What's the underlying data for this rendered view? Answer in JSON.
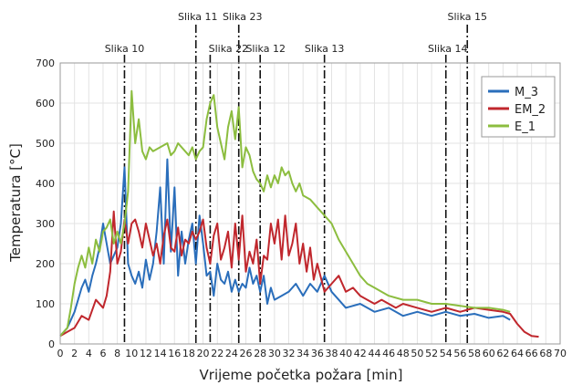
{
  "chart_data": {
    "type": "line",
    "xlabel": "Vrijeme početka požara [min]",
    "ylabel": "Temperatura [°C]",
    "xlim": [
      0,
      70
    ],
    "ylim": [
      0,
      700
    ],
    "xticks": [
      0,
      2,
      4,
      6,
      8,
      10,
      12,
      14,
      16,
      18,
      20,
      22,
      24,
      26,
      28,
      30,
      32,
      34,
      36,
      38,
      40,
      42,
      44,
      46,
      48,
      50,
      52,
      54,
      56,
      58,
      60,
      62,
      64,
      66,
      68,
      70
    ],
    "yticks": [
      0,
      100,
      200,
      300,
      400,
      500,
      600,
      700
    ],
    "grid": true,
    "legend_position": "top-right",
    "series": [
      {
        "name": "M_3",
        "color": "#2a6ebb",
        "points": [
          [
            0,
            20
          ],
          [
            1,
            40
          ],
          [
            2,
            80
          ],
          [
            3,
            140
          ],
          [
            3.5,
            160
          ],
          [
            4,
            130
          ],
          [
            4.5,
            170
          ],
          [
            5,
            200
          ],
          [
            5.5,
            240
          ],
          [
            6,
            300
          ],
          [
            6.5,
            250
          ],
          [
            7,
            200
          ],
          [
            7.5,
            220
          ],
          [
            8,
            240
          ],
          [
            8.5,
            300
          ],
          [
            9,
            440
          ],
          [
            9.5,
            200
          ],
          [
            10,
            170
          ],
          [
            10.5,
            150
          ],
          [
            11,
            180
          ],
          [
            11.5,
            140
          ],
          [
            12,
            210
          ],
          [
            12.5,
            160
          ],
          [
            13,
            200
          ],
          [
            13.5,
            280
          ],
          [
            14,
            390
          ],
          [
            14.5,
            200
          ],
          [
            15,
            460
          ],
          [
            15.5,
            230
          ],
          [
            16,
            390
          ],
          [
            16.5,
            170
          ],
          [
            17,
            280
          ],
          [
            17.5,
            200
          ],
          [
            18,
            260
          ],
          [
            18.5,
            300
          ],
          [
            19,
            200
          ],
          [
            19.5,
            320
          ],
          [
            20,
            250
          ],
          [
            20.5,
            170
          ],
          [
            21,
            180
          ],
          [
            21.5,
            120
          ],
          [
            22,
            200
          ],
          [
            22.5,
            160
          ],
          [
            23,
            150
          ],
          [
            23.5,
            180
          ],
          [
            24,
            130
          ],
          [
            24.5,
            160
          ],
          [
            25,
            130
          ],
          [
            25.5,
            150
          ],
          [
            26,
            140
          ],
          [
            26.5,
            190
          ],
          [
            27,
            150
          ],
          [
            27.5,
            170
          ],
          [
            28,
            130
          ],
          [
            28.5,
            170
          ],
          [
            29,
            100
          ],
          [
            29.5,
            140
          ],
          [
            30,
            110
          ],
          [
            31,
            120
          ],
          [
            32,
            130
          ],
          [
            33,
            150
          ],
          [
            34,
            120
          ],
          [
            35,
            150
          ],
          [
            36,
            130
          ],
          [
            37,
            170
          ],
          [
            38,
            130
          ],
          [
            39,
            110
          ],
          [
            40,
            90
          ],
          [
            42,
            100
          ],
          [
            44,
            80
          ],
          [
            46,
            90
          ],
          [
            48,
            70
          ],
          [
            50,
            80
          ],
          [
            52,
            70
          ],
          [
            54,
            80
          ],
          [
            56,
            70
          ],
          [
            58,
            75
          ],
          [
            60,
            65
          ],
          [
            62,
            70
          ],
          [
            63,
            60
          ]
        ]
      },
      {
        "name": "EM_2",
        "color": "#c0272d",
        "points": [
          [
            0,
            20
          ],
          [
            1,
            30
          ],
          [
            2,
            40
          ],
          [
            3,
            70
          ],
          [
            4,
            60
          ],
          [
            5,
            110
          ],
          [
            6,
            90
          ],
          [
            6.5,
            120
          ],
          [
            7,
            180
          ],
          [
            7.5,
            330
          ],
          [
            8,
            200
          ],
          [
            8.5,
            230
          ],
          [
            9,
            310
          ],
          [
            9.5,
            250
          ],
          [
            10,
            300
          ],
          [
            10.5,
            310
          ],
          [
            11,
            280
          ],
          [
            11.5,
            240
          ],
          [
            12,
            300
          ],
          [
            12.5,
            260
          ],
          [
            13,
            220
          ],
          [
            13.5,
            250
          ],
          [
            14,
            200
          ],
          [
            14.5,
            270
          ],
          [
            15,
            310
          ],
          [
            15.5,
            240
          ],
          [
            16,
            230
          ],
          [
            16.5,
            290
          ],
          [
            17,
            220
          ],
          [
            17.5,
            260
          ],
          [
            18,
            250
          ],
          [
            18.5,
            280
          ],
          [
            19,
            260
          ],
          [
            19.5,
            280
          ],
          [
            20,
            310
          ],
          [
            20.5,
            240
          ],
          [
            21,
            200
          ],
          [
            21.5,
            270
          ],
          [
            22,
            300
          ],
          [
            22.5,
            210
          ],
          [
            23,
            240
          ],
          [
            23.5,
            280
          ],
          [
            24,
            190
          ],
          [
            24.5,
            300
          ],
          [
            25,
            210
          ],
          [
            25.5,
            320
          ],
          [
            26,
            180
          ],
          [
            26.5,
            230
          ],
          [
            27,
            200
          ],
          [
            27.5,
            260
          ],
          [
            28,
            150
          ],
          [
            28.5,
            220
          ],
          [
            29,
            210
          ],
          [
            29.5,
            300
          ],
          [
            30,
            250
          ],
          [
            30.5,
            310
          ],
          [
            31,
            210
          ],
          [
            31.5,
            320
          ],
          [
            32,
            220
          ],
          [
            32.5,
            250
          ],
          [
            33,
            300
          ],
          [
            33.5,
            200
          ],
          [
            34,
            250
          ],
          [
            34.5,
            180
          ],
          [
            35,
            240
          ],
          [
            35.5,
            160
          ],
          [
            36,
            200
          ],
          [
            37,
            130
          ],
          [
            38,
            150
          ],
          [
            39,
            170
          ],
          [
            40,
            130
          ],
          [
            41,
            140
          ],
          [
            42,
            120
          ],
          [
            43,
            110
          ],
          [
            44,
            100
          ],
          [
            45,
            110
          ],
          [
            46,
            100
          ],
          [
            47,
            90
          ],
          [
            48,
            100
          ],
          [
            50,
            90
          ],
          [
            52,
            80
          ],
          [
            54,
            90
          ],
          [
            56,
            80
          ],
          [
            58,
            90
          ],
          [
            60,
            85
          ],
          [
            62,
            80
          ],
          [
            63,
            75
          ],
          [
            64,
            50
          ],
          [
            65,
            30
          ],
          [
            66,
            20
          ],
          [
            67,
            18
          ]
        ]
      },
      {
        "name": "E_1",
        "color": "#8cbd3f",
        "points": [
          [
            0,
            20
          ],
          [
            1,
            40
          ],
          [
            1.5,
            90
          ],
          [
            2,
            150
          ],
          [
            2.5,
            190
          ],
          [
            3,
            220
          ],
          [
            3.5,
            190
          ],
          [
            4,
            240
          ],
          [
            4.5,
            200
          ],
          [
            5,
            260
          ],
          [
            5.5,
            230
          ],
          [
            6,
            280
          ],
          [
            6.5,
            290
          ],
          [
            7,
            310
          ],
          [
            7.5,
            250
          ],
          [
            8,
            280
          ],
          [
            8.5,
            250
          ],
          [
            9,
            300
          ],
          [
            9.5,
            380
          ],
          [
            10,
            630
          ],
          [
            10.5,
            500
          ],
          [
            11,
            560
          ],
          [
            11.5,
            480
          ],
          [
            12,
            460
          ],
          [
            12.5,
            490
          ],
          [
            13,
            480
          ],
          [
            14,
            490
          ],
          [
            15,
            500
          ],
          [
            15.5,
            470
          ],
          [
            16,
            480
          ],
          [
            16.5,
            500
          ],
          [
            17,
            490
          ],
          [
            17.5,
            480
          ],
          [
            18,
            470
          ],
          [
            18.5,
            490
          ],
          [
            19,
            460
          ],
          [
            19.5,
            480
          ],
          [
            20,
            490
          ],
          [
            20.5,
            560
          ],
          [
            21,
            600
          ],
          [
            21.5,
            620
          ],
          [
            22,
            540
          ],
          [
            22.5,
            500
          ],
          [
            23,
            460
          ],
          [
            23.5,
            540
          ],
          [
            24,
            580
          ],
          [
            24.5,
            510
          ],
          [
            25,
            590
          ],
          [
            25.5,
            440
          ],
          [
            26,
            490
          ],
          [
            26.5,
            470
          ],
          [
            27,
            430
          ],
          [
            27.5,
            410
          ],
          [
            28,
            400
          ],
          [
            28.5,
            380
          ],
          [
            29,
            420
          ],
          [
            29.5,
            390
          ],
          [
            30,
            420
          ],
          [
            30.5,
            400
          ],
          [
            31,
            440
          ],
          [
            31.5,
            420
          ],
          [
            32,
            430
          ],
          [
            32.5,
            400
          ],
          [
            33,
            380
          ],
          [
            33.5,
            400
          ],
          [
            34,
            370
          ],
          [
            35,
            360
          ],
          [
            36,
            340
          ],
          [
            37,
            320
          ],
          [
            38,
            300
          ],
          [
            39,
            260
          ],
          [
            40,
            230
          ],
          [
            41,
            200
          ],
          [
            42,
            170
          ],
          [
            43,
            150
          ],
          [
            44,
            140
          ],
          [
            46,
            120
          ],
          [
            48,
            110
          ],
          [
            50,
            110
          ],
          [
            52,
            100
          ],
          [
            54,
            100
          ],
          [
            56,
            95
          ],
          [
            58,
            90
          ],
          [
            60,
            90
          ],
          [
            62,
            85
          ],
          [
            63,
            80
          ]
        ]
      }
    ],
    "annotations": [
      {
        "label": "Slika 10",
        "x": 9,
        "row": "lower"
      },
      {
        "label": "Slika 11",
        "x": 19,
        "row": "upper"
      },
      {
        "label": "Slika 22",
        "x": 21,
        "row": "lower"
      },
      {
        "label": "Slika 23",
        "x": 25,
        "row": "upper"
      },
      {
        "label": "Slika 12",
        "x": 28,
        "row": "lower"
      },
      {
        "label": "Slika 13",
        "x": 37,
        "row": "lower"
      },
      {
        "label": "Slika 14",
        "x": 54,
        "row": "lower"
      },
      {
        "label": "Slika 15",
        "x": 57,
        "row": "upper"
      }
    ]
  }
}
